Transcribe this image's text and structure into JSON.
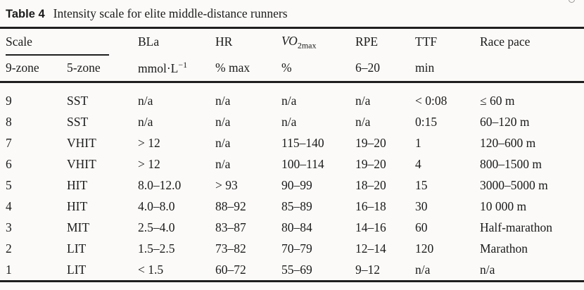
{
  "caption": {
    "label": "Table 4",
    "text": "Intensity scale for elite middle-distance runners"
  },
  "header": {
    "scale_group": "Scale",
    "bla": "BLa",
    "hr": "HR",
    "vo2max_base": "VO",
    "vo2max_sub": "2max",
    "rpe": "RPE",
    "ttf": "TTF",
    "race_pace": "Race pace",
    "zone9": "9-zone",
    "zone5": "5-zone",
    "bla_unit_base": "mmol·L",
    "bla_unit_sup": "−1",
    "hr_unit": "% max",
    "vo2max_unit": "%",
    "rpe_unit": "6–20",
    "ttf_unit": "min",
    "race_pace_unit": ""
  },
  "rows": [
    [
      "9",
      "SST",
      "n/a",
      "n/a",
      "n/a",
      "n/a",
      "< 0:08",
      "≤ 60 m"
    ],
    [
      "8",
      "SST",
      "n/a",
      "n/a",
      "n/a",
      "n/a",
      "0:15",
      "60–120 m"
    ],
    [
      "7",
      "VHIT",
      "> 12",
      "n/a",
      "115–140",
      "19–20",
      "1",
      "120–600 m"
    ],
    [
      "6",
      "VHIT",
      "> 12",
      "n/a",
      "100–114",
      "19–20",
      "4",
      "800–1500 m"
    ],
    [
      "5",
      "HIT",
      "8.0–12.0",
      "> 93",
      "90–99",
      "18–20",
      "15",
      "3000–5000 m"
    ],
    [
      "4",
      "HIT",
      "4.0–8.0",
      "88–92",
      "85–89",
      "16–18",
      "30",
      "10 000 m"
    ],
    [
      "3",
      "MIT",
      "2.5–4.0",
      "83–87",
      "80–84",
      "14–16",
      "60",
      "Half-marathon"
    ],
    [
      "2",
      "LIT",
      "1.5–2.5",
      "73–82",
      "70–79",
      "12–14",
      "120",
      "Marathon"
    ],
    [
      "1",
      "LIT",
      "< 1.5",
      "60–72",
      "55–69",
      "9–12",
      "n/a",
      "n/a"
    ]
  ],
  "colors": {
    "text": "#1b1b1b",
    "rule": "#1f1f1f",
    "background": "#fbfaf8"
  }
}
